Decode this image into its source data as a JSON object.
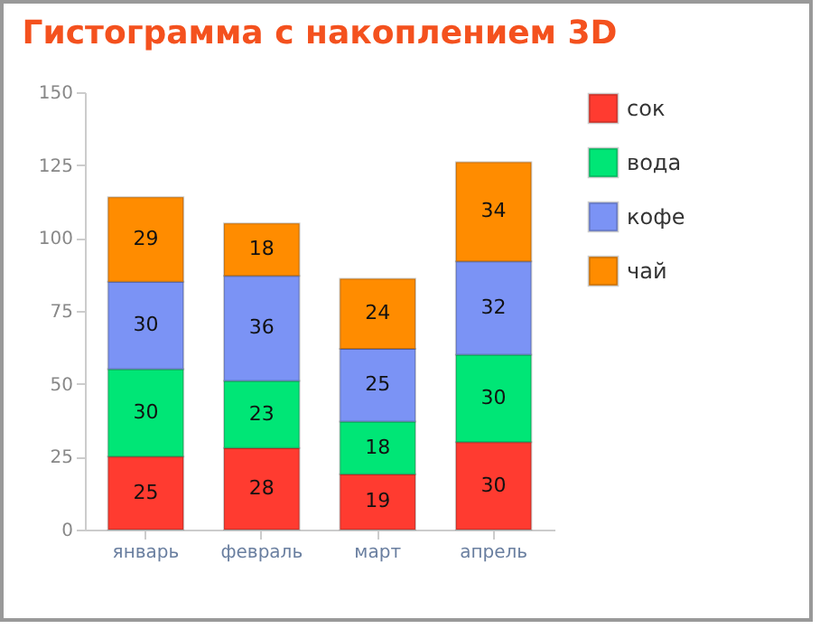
{
  "chart_data": {
    "type": "bar",
    "title": "Гистограмма с накоплением 3D",
    "stacked": true,
    "data_labels": true,
    "legend": "right",
    "grid": false,
    "categories": [
      "январь",
      "февраль",
      "март",
      "апрель"
    ],
    "ylim": [
      0,
      150
    ],
    "yticks": [
      0,
      25,
      50,
      75,
      100,
      125,
      150
    ],
    "series": [
      {
        "name": "сок",
        "color": "#ff3b30",
        "values": [
          25,
          28,
          19,
          30
        ]
      },
      {
        "name": "вода",
        "color": "#00e676",
        "values": [
          30,
          23,
          18,
          30
        ]
      },
      {
        "name": "кофе",
        "color": "#7b93f5",
        "values": [
          30,
          36,
          25,
          32
        ]
      },
      {
        "name": "чай",
        "color": "#ff8c00",
        "values": [
          29,
          18,
          24,
          34
        ]
      }
    ]
  }
}
